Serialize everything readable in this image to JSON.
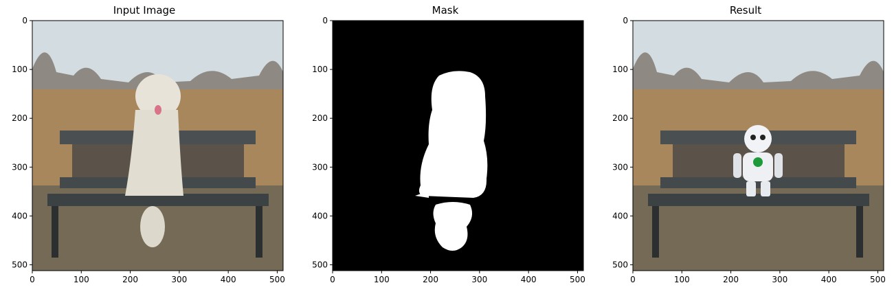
{
  "panels": [
    {
      "title": "Input Image",
      "kind": "photo-dog",
      "x_ticks": [
        "0",
        "100",
        "200",
        "300",
        "400",
        "500"
      ],
      "y_ticks": [
        "0",
        "100",
        "200",
        "300",
        "400",
        "500"
      ],
      "xlim": [
        0,
        512
      ],
      "ylim": [
        512,
        0
      ]
    },
    {
      "title": "Mask",
      "kind": "mask",
      "x_ticks": [
        "0",
        "100",
        "200",
        "300",
        "400",
        "500"
      ],
      "y_ticks": [
        "0",
        "100",
        "200",
        "300",
        "400",
        "500"
      ],
      "xlim": [
        0,
        512
      ],
      "ylim": [
        512,
        0
      ]
    },
    {
      "title": "Result",
      "kind": "photo-robot",
      "x_ticks": [
        "0",
        "100",
        "200",
        "300",
        "400",
        "500"
      ],
      "y_ticks": [
        "0",
        "100",
        "200",
        "300",
        "400",
        "500"
      ],
      "xlim": [
        0,
        512
      ],
      "ylim": [
        512,
        0
      ]
    }
  ],
  "colors": {
    "sky": "#cfd9de",
    "field": "#a9875c",
    "ground": "#6d6552",
    "bench": "#3f4446",
    "dog": "#e6e1d6",
    "mask_bg": "#000000",
    "mask_fg": "#ffffff",
    "robot": "#f1f3f6",
    "robot_chest": "#1f9a3a"
  }
}
